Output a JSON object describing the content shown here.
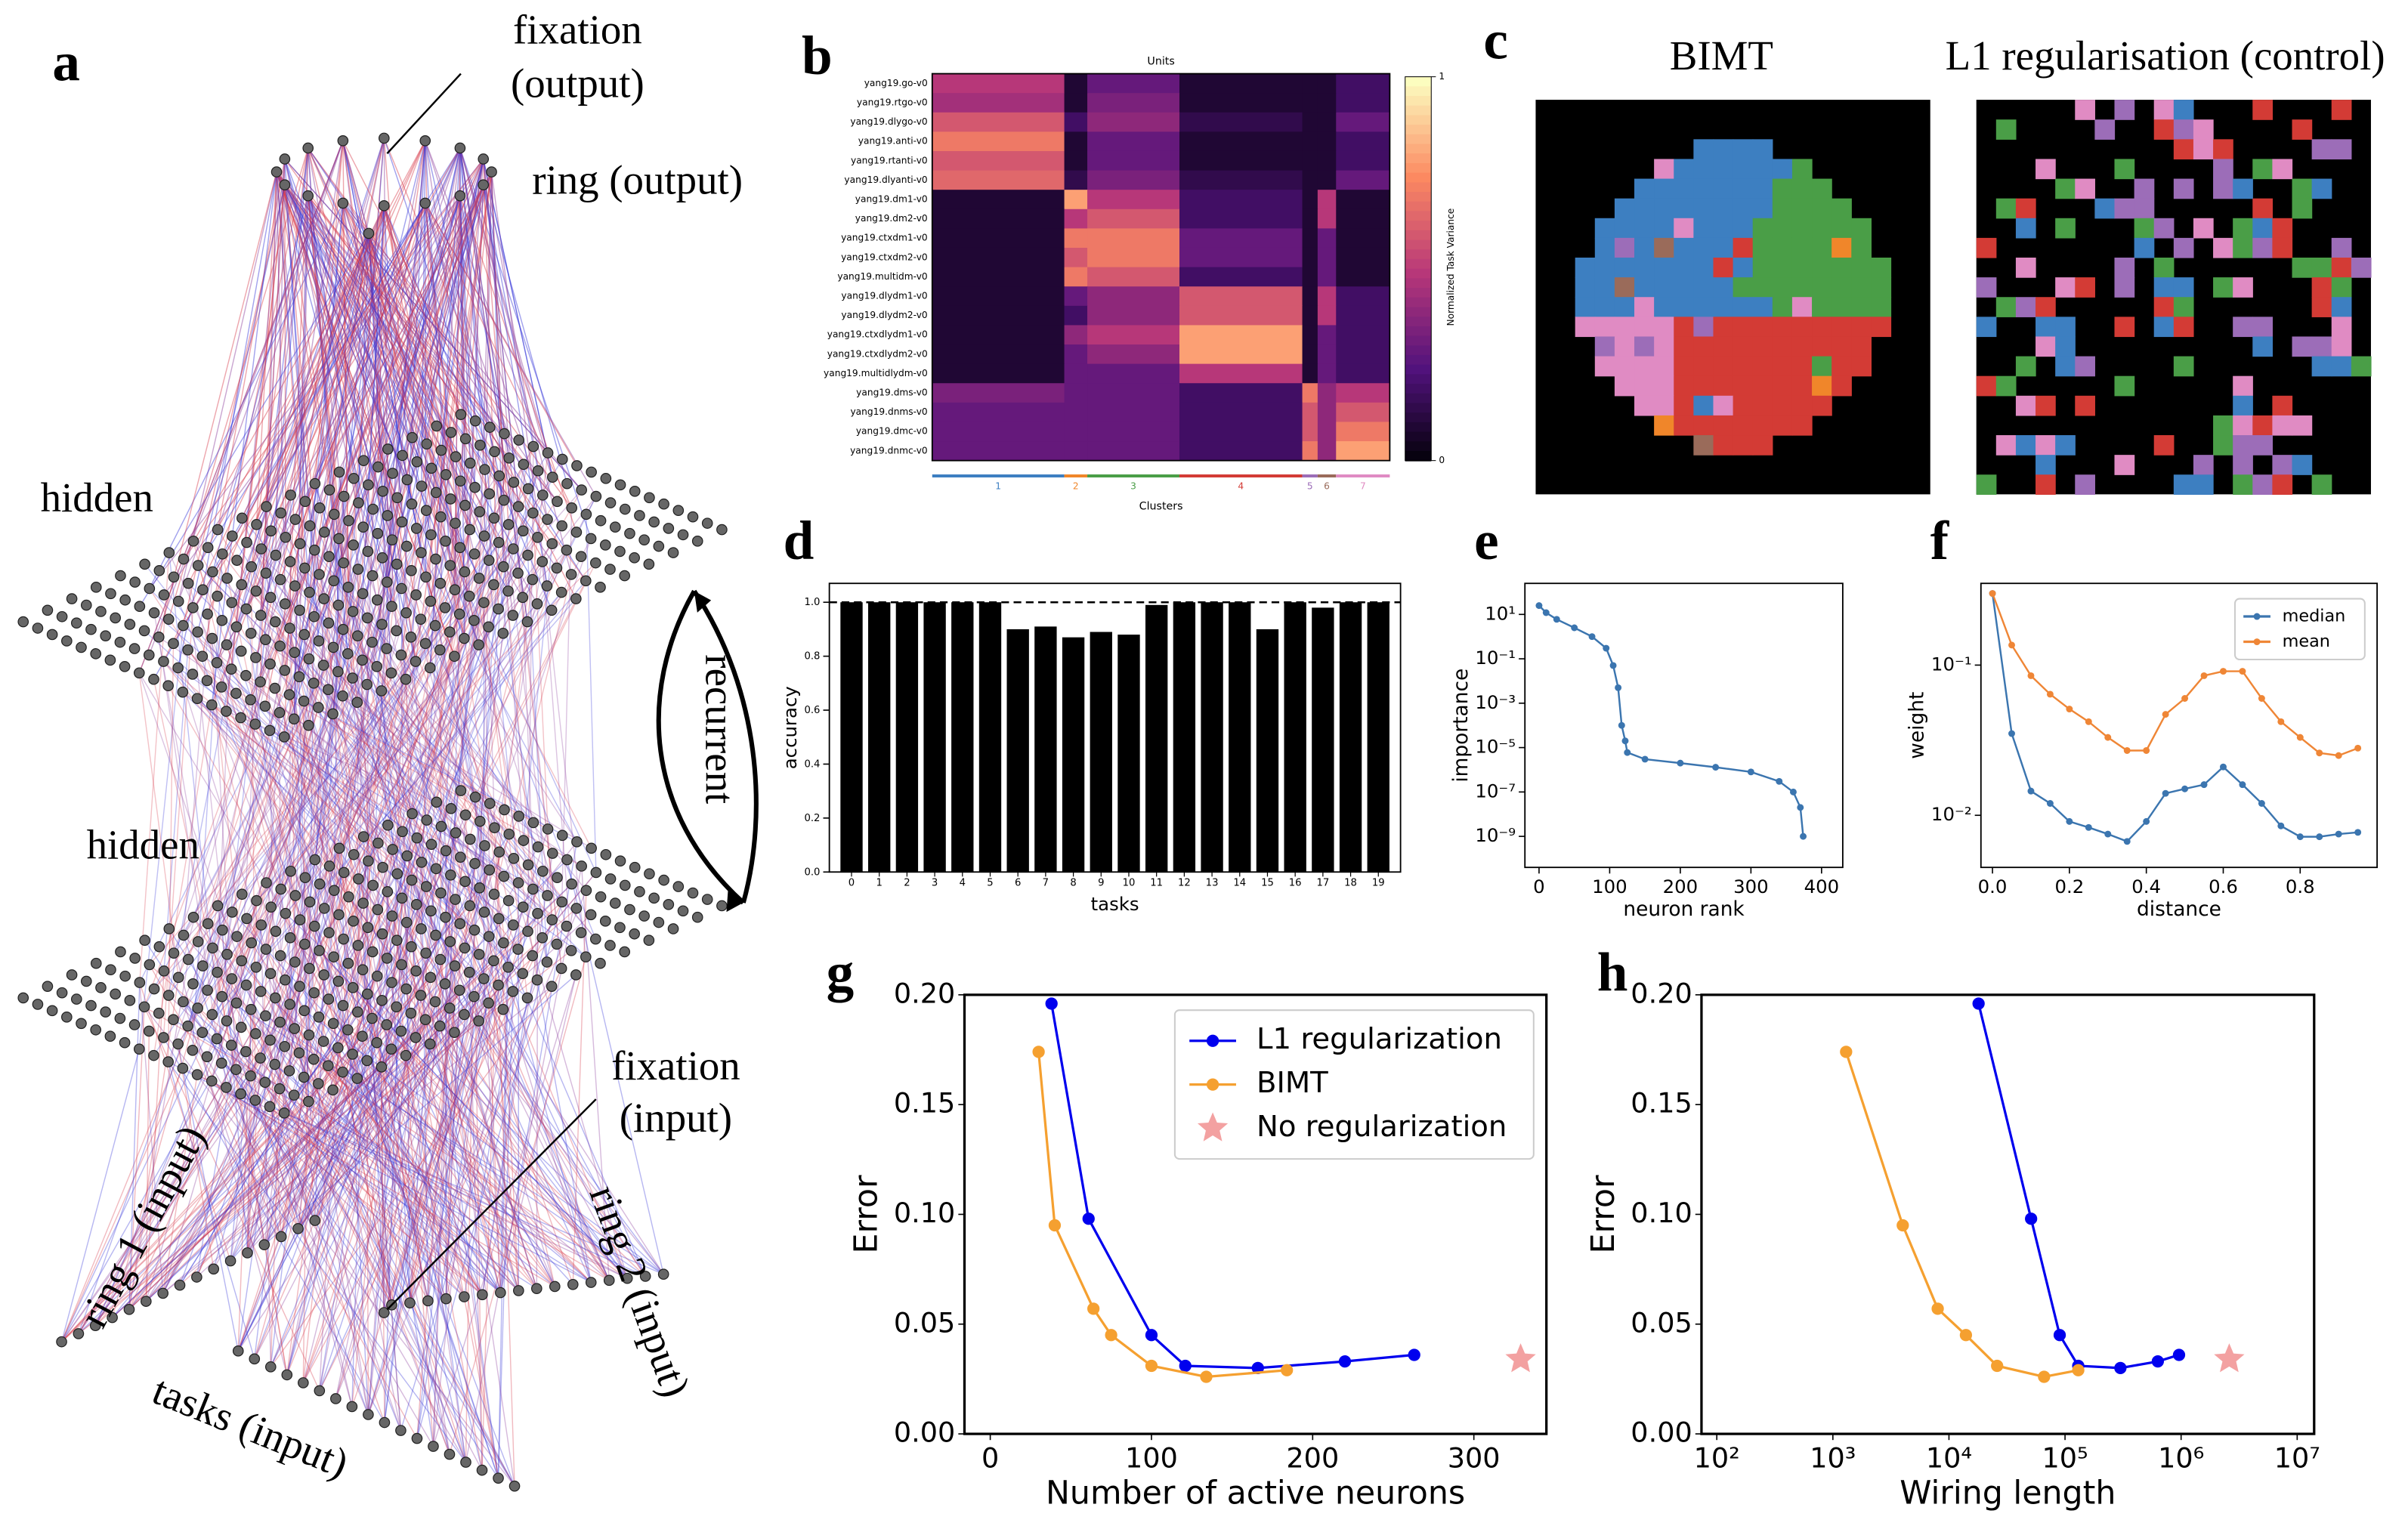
{
  "diagram": {
    "panel": "a",
    "labels": [
      [
        "fixation",
        "(output)"
      ],
      [
        "ring (output)"
      ],
      [
        "hidden"
      ],
      [
        "hidden"
      ],
      [
        "recurrent"
      ],
      [
        "fixation",
        "(input)"
      ],
      [
        "ring 1 (input)"
      ],
      [
        "ring 2 (input)"
      ],
      [
        "tasks (input)"
      ]
    ]
  },
  "panel_c": {
    "panel": "c",
    "titles": [
      "BIMT",
      "L1 regularisation (control)"
    ]
  },
  "chart_data": [
    {
      "type": "heatmap",
      "panel": "b",
      "title": "Units",
      "xlabel": "Clusters",
      "colorbar_label": "Normalized Task Variance",
      "rows": [
        "yang19.go-v0",
        "yang19.rtgo-v0",
        "yang19.dlygo-v0",
        "yang19.anti-v0",
        "yang19.rtanti-v0",
        "yang19.dlyanti-v0",
        "yang19.dm1-v0",
        "yang19.dm2-v0",
        "yang19.ctxdm1-v0",
        "yang19.ctxdm2-v0",
        "yang19.multidm-v0",
        "yang19.dlydm1-v0",
        "yang19.dlydm2-v0",
        "yang19.ctxdlydm1-v0",
        "yang19.ctxdlydm2-v0",
        "yang19.multidlydm-v0",
        "yang19.dms-v0",
        "yang19.dnms-v0",
        "yang19.dmc-v0",
        "yang19.dnmc-v0"
      ],
      "clusters": [
        "1",
        "2",
        "3",
        "4",
        "5",
        "6",
        "7"
      ],
      "cluster_colors": [
        "#3d7fc1",
        "#f0862a",
        "#4a9e47",
        "#d33b35",
        "#9c6db8",
        "#9a6b5a",
        "#e08bc3"
      ],
      "values": [
        [
          0.5,
          0.1,
          0.3,
          0.1,
          0.1,
          0.1,
          0.2
        ],
        [
          0.45,
          0.1,
          0.35,
          0.1,
          0.1,
          0.1,
          0.2
        ],
        [
          0.6,
          0.2,
          0.4,
          0.15,
          0.1,
          0.1,
          0.3
        ],
        [
          0.7,
          0.1,
          0.3,
          0.1,
          0.1,
          0.1,
          0.2
        ],
        [
          0.6,
          0.1,
          0.3,
          0.1,
          0.1,
          0.1,
          0.2
        ],
        [
          0.65,
          0.15,
          0.35,
          0.15,
          0.1,
          0.1,
          0.3
        ],
        [
          0.1,
          0.8,
          0.5,
          0.2,
          0.1,
          0.5,
          0.1
        ],
        [
          0.1,
          0.5,
          0.6,
          0.2,
          0.1,
          0.5,
          0.1
        ],
        [
          0.1,
          0.7,
          0.7,
          0.3,
          0.1,
          0.3,
          0.1
        ],
        [
          0.1,
          0.6,
          0.7,
          0.3,
          0.1,
          0.3,
          0.1
        ],
        [
          0.1,
          0.7,
          0.6,
          0.2,
          0.1,
          0.3,
          0.1
        ],
        [
          0.1,
          0.3,
          0.4,
          0.6,
          0.1,
          0.5,
          0.2
        ],
        [
          0.1,
          0.2,
          0.4,
          0.6,
          0.1,
          0.5,
          0.2
        ],
        [
          0.1,
          0.4,
          0.5,
          0.8,
          0.1,
          0.3,
          0.2
        ],
        [
          0.1,
          0.3,
          0.4,
          0.8,
          0.1,
          0.3,
          0.2
        ],
        [
          0.1,
          0.3,
          0.3,
          0.5,
          0.1,
          0.3,
          0.2
        ],
        [
          0.35,
          0.3,
          0.3,
          0.2,
          0.7,
          0.4,
          0.5
        ],
        [
          0.3,
          0.3,
          0.3,
          0.2,
          0.6,
          0.4,
          0.6
        ],
        [
          0.3,
          0.3,
          0.3,
          0.2,
          0.6,
          0.4,
          0.7
        ],
        [
          0.3,
          0.3,
          0.3,
          0.2,
          0.7,
          0.4,
          0.8
        ]
      ],
      "clim": [
        0,
        1
      ],
      "colorbar_ticks": [
        0,
        1
      ]
    },
    {
      "type": "bar",
      "panel": "d",
      "xlabel": "tasks",
      "ylabel": "accuracy",
      "color": "#000000",
      "categories": [
        "0",
        "1",
        "2",
        "3",
        "4",
        "5",
        "6",
        "7",
        "8",
        "9",
        "10",
        "11",
        "12",
        "13",
        "14",
        "15",
        "16",
        "17",
        "18",
        "19"
      ],
      "values": [
        1.0,
        1.0,
        1.0,
        1.0,
        1.0,
        1.0,
        0.9,
        0.91,
        0.87,
        0.89,
        0.88,
        0.99,
        1.0,
        1.0,
        1.0,
        0.9,
        1.0,
        0.98,
        1.0,
        1.0
      ],
      "ylim": [
        0,
        1.07
      ],
      "yticks": [
        {
          "value": 0,
          "label": "0.0"
        },
        {
          "value": 0.2,
          "label": "0.2"
        },
        {
          "value": 0.4,
          "label": "0.4"
        },
        {
          "value": 0.6,
          "label": "0.6"
        },
        {
          "value": 0.8,
          "label": "0.8"
        },
        {
          "value": 1,
          "label": "1.0"
        }
      ],
      "hline": 1
    },
    {
      "type": "line",
      "panel": "e",
      "xlabel": "neuron rank",
      "ylabel": "importance",
      "ylog": true,
      "xlim": [
        -20,
        430
      ],
      "xticks": [
        0,
        100,
        200,
        300,
        400
      ],
      "ylim": [
        4e-11,
        250
      ],
      "yticks": [
        {
          "value": 10,
          "label": "10¹"
        },
        {
          "value": 0.1,
          "label": "10⁻¹"
        },
        {
          "value": 0.001,
          "label": "10⁻³"
        },
        {
          "value": 1e-05,
          "label": "10⁻⁵"
        },
        {
          "value": 1e-07,
          "label": "10⁻⁷"
        },
        {
          "value": 1e-09,
          "label": "10⁻⁹"
        }
      ],
      "series": [
        {
          "color": "#3b75af",
          "x": [
            0,
            10,
            25,
            50,
            75,
            95,
            105,
            112,
            117,
            122,
            125,
            150,
            200,
            250,
            300,
            340,
            360,
            370,
            374
          ],
          "values": [
            25,
            12,
            6,
            2.5,
            1,
            0.3,
            0.05,
            0.005,
            0.0001,
            2e-05,
            6e-06,
            3e-06,
            2e-06,
            1.3e-06,
            8e-07,
            3e-07,
            1e-07,
            2e-08,
            1e-09
          ]
        }
      ]
    },
    {
      "type": "line",
      "panel": "f",
      "xlabel": "distance",
      "ylabel": "weight",
      "ylog": true,
      "legend": "upper right",
      "xlim": [
        -0.03,
        1.0
      ],
      "xticks": [
        {
          "value": 0,
          "label": "0.0"
        },
        {
          "value": 0.2,
          "label": "0.2"
        },
        {
          "value": 0.4,
          "label": "0.4"
        },
        {
          "value": 0.6,
          "label": "0.6"
        },
        {
          "value": 0.8,
          "label": "0.8"
        }
      ],
      "ylim": [
        0.0045,
        0.35
      ],
      "yticks": [
        {
          "value": 0.01,
          "label": "10⁻²"
        },
        {
          "value": 0.1,
          "label": "10⁻¹"
        }
      ],
      "series": [
        {
          "name": "median",
          "color": "#3b75af",
          "x": [
            0,
            0.05,
            0.1,
            0.15,
            0.2,
            0.25,
            0.3,
            0.35,
            0.4,
            0.45,
            0.5,
            0.55,
            0.6,
            0.65,
            0.7,
            0.75,
            0.8,
            0.85,
            0.9,
            0.95
          ],
          "values": [
            0.3,
            0.035,
            0.0145,
            0.012,
            0.0091,
            0.0083,
            0.0075,
            0.0067,
            0.0091,
            0.014,
            0.015,
            0.016,
            0.021,
            0.016,
            0.012,
            0.0085,
            0.0072,
            0.0072,
            0.0075,
            0.0077
          ]
        },
        {
          "name": "mean",
          "color": "#ef8636",
          "x": [
            0,
            0.05,
            0.1,
            0.15,
            0.2,
            0.25,
            0.3,
            0.35,
            0.4,
            0.45,
            0.5,
            0.55,
            0.6,
            0.65,
            0.7,
            0.75,
            0.8,
            0.85,
            0.9,
            0.95
          ],
          "values": [
            0.3,
            0.136,
            0.085,
            0.064,
            0.051,
            0.042,
            0.033,
            0.027,
            0.027,
            0.047,
            0.06,
            0.085,
            0.091,
            0.091,
            0.06,
            0.042,
            0.033,
            0.026,
            0.025,
            0.028
          ]
        }
      ]
    },
    {
      "type": "line",
      "panel": "g",
      "xlabel": "Number of active neurons",
      "ylabel": "Error",
      "legend": "upper right",
      "xlim": [
        -16,
        345
      ],
      "xticks": [
        0,
        100,
        200,
        300
      ],
      "ylim": [
        0,
        0.2
      ],
      "yticks": [
        {
          "value": 0,
          "label": "0.00"
        },
        {
          "value": 0.05,
          "label": "0.05"
        },
        {
          "value": 0.1,
          "label": "0.10"
        },
        {
          "value": 0.15,
          "label": "0.15"
        },
        {
          "value": 0.2,
          "label": "0.20"
        }
      ],
      "series": [
        {
          "name": "L1 regularization",
          "color": "#0000ee",
          "x": [
            38,
            61,
            100,
            121,
            166,
            220,
            263
          ],
          "values": [
            0.196,
            0.098,
            0.045,
            0.031,
            0.03,
            0.033,
            0.036
          ]
        },
        {
          "name": "BIMT",
          "color": "#f5a030",
          "x": [
            30,
            40,
            64,
            75,
            100,
            134,
            184
          ],
          "values": [
            0.174,
            0.095,
            0.057,
            0.045,
            0.031,
            0.026,
            0.029
          ]
        },
        {
          "name": "No regularization",
          "color": "#f08a8a",
          "marker": "star",
          "x": [
            329
          ],
          "values": [
            0.034
          ]
        }
      ]
    },
    {
      "type": "line",
      "panel": "h",
      "xlabel": "Wiring length",
      "ylabel": "Error",
      "xlog": true,
      "xlim": [
        73.8,
        14000000
      ],
      "xticks": [
        {
          "value": 100,
          "label": "10²"
        },
        {
          "value": 1000,
          "label": "10³"
        },
        {
          "value": 10000,
          "label": "10⁴"
        },
        {
          "value": 100000,
          "label": "10⁵"
        },
        {
          "value": 1000000,
          "label": "10⁶"
        },
        {
          "value": 10000000,
          "label": "10⁷"
        }
      ],
      "ylim": [
        0,
        0.2
      ],
      "yticks": [
        {
          "value": 0,
          "label": "0.00"
        },
        {
          "value": 0.05,
          "label": "0.05"
        },
        {
          "value": 0.1,
          "label": "0.10"
        },
        {
          "value": 0.15,
          "label": "0.15"
        },
        {
          "value": 0.2,
          "label": "0.20"
        }
      ],
      "series": [
        {
          "color": "#0000ee",
          "x": [
            18000,
            51000,
            90000,
            130000,
            300000,
            630000,
            960000
          ],
          "values": [
            0.196,
            0.098,
            0.045,
            0.031,
            0.03,
            0.033,
            0.036
          ]
        },
        {
          "color": "#f5a030",
          "x": [
            1300,
            4000,
            8000,
            14000,
            26000,
            66000,
            130000
          ],
          "values": [
            0.174,
            0.095,
            0.057,
            0.045,
            0.031,
            0.026,
            0.029
          ]
        },
        {
          "color": "#f08a8a",
          "marker": "star",
          "x": [
            2600000
          ],
          "values": [
            0.034
          ]
        }
      ]
    }
  ]
}
